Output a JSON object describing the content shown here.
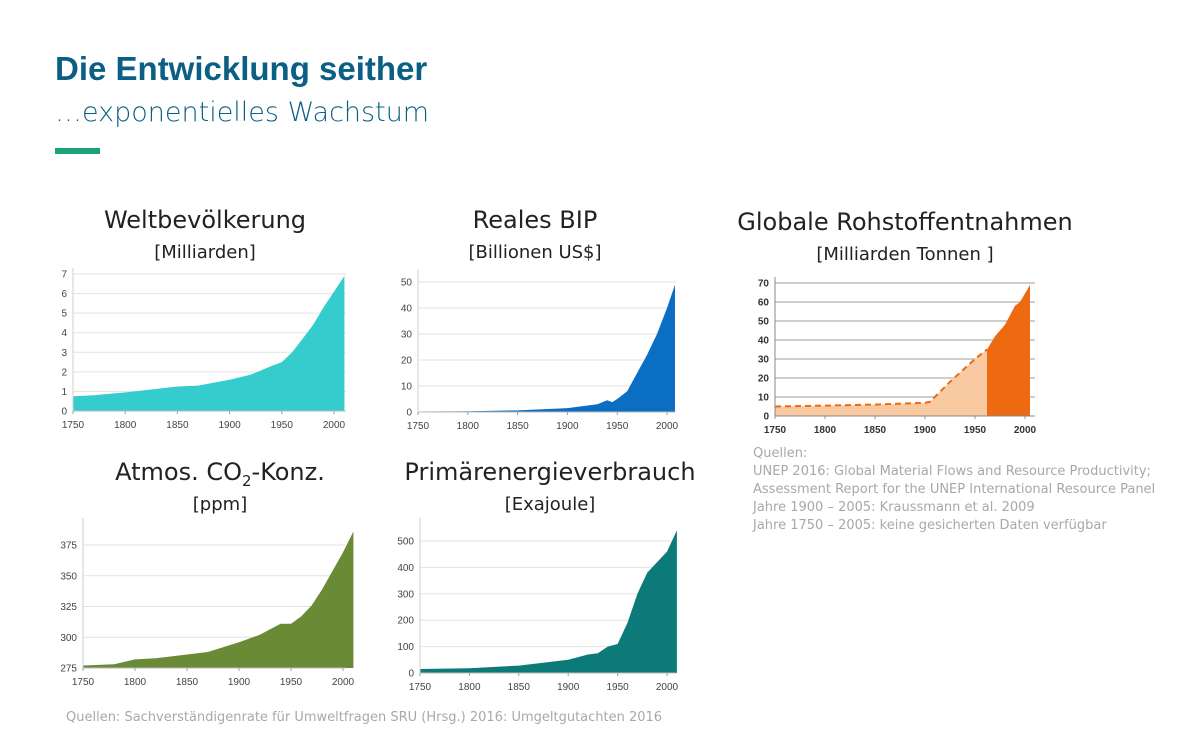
{
  "header": {
    "title": "Die Entwicklung seither",
    "subtitle": "…exponentielles Wachstum"
  },
  "colors": {
    "title": "#0b5f84",
    "accent": "#1aa37a"
  },
  "chart_data": [
    {
      "id": "population",
      "type": "area",
      "title": "Weltbevölkerung",
      "unit": "[Milliarden]",
      "color": "#34cccc",
      "xlim": [
        1750,
        2010
      ],
      "ylim": [
        0,
        7
      ],
      "yticks": [
        0,
        1,
        2,
        3,
        4,
        5,
        6,
        7
      ],
      "xticks": [
        1750,
        1800,
        1850,
        1900,
        1950,
        2000
      ],
      "x": [
        1750,
        1770,
        1800,
        1850,
        1870,
        1900,
        1920,
        1940,
        1950,
        1960,
        1970,
        1980,
        1990,
        2000,
        2010
      ],
      "y": [
        0.75,
        0.8,
        0.95,
        1.25,
        1.3,
        1.6,
        1.85,
        2.3,
        2.5,
        3.0,
        3.7,
        4.4,
        5.3,
        6.1,
        6.9
      ]
    },
    {
      "id": "gdp",
      "type": "area",
      "title": "Reales BIP",
      "unit": "[Billionen US$]",
      "color": "#0a6fc2",
      "xlim": [
        1750,
        2010
      ],
      "ylim": [
        0,
        50
      ],
      "yticks": [
        0,
        10,
        20,
        30,
        40,
        50
      ],
      "xticks": [
        1750,
        1800,
        1850,
        1900,
        1950,
        2000
      ],
      "x": [
        1750,
        1800,
        1850,
        1900,
        1930,
        1940,
        1945,
        1950,
        1960,
        1970,
        1980,
        1990,
        2000,
        2008
      ],
      "y": [
        0.2,
        0.3,
        0.6,
        1.5,
        3,
        4.5,
        3.8,
        5,
        8,
        15,
        22,
        30,
        40,
        49
      ]
    },
    {
      "id": "resources",
      "type": "area",
      "title": "Globale Rohstoffentnahmen",
      "unit": "[Milliarden Tonnen ]",
      "color": "#ee6a10",
      "color_estimate": "#f9c9a2",
      "xlim": [
        1750,
        2008
      ],
      "ylim": [
        0,
        70
      ],
      "yticks": [
        0,
        10,
        20,
        30,
        40,
        50,
        60,
        70
      ],
      "xticks": [
        1750,
        1800,
        1850,
        1900,
        1950,
        2000
      ],
      "estimate_x": [
        1750,
        1800,
        1850,
        1900,
        1905,
        1925,
        1950,
        1962
      ],
      "estimate_y": [
        5,
        5.5,
        6,
        7,
        7.5,
        18,
        30,
        35
      ],
      "x": [
        1962,
        1970,
        1980,
        1990,
        1995,
        2005
      ],
      "y": [
        35,
        42,
        48,
        58,
        60,
        69
      ]
    },
    {
      "id": "co2",
      "type": "area",
      "title": "Atmos. CO",
      "title_sub": "2",
      "title_end": "-Konz.",
      "unit": "[ppm]",
      "color": "#6a8a35",
      "xlim": [
        1750,
        2010
      ],
      "ylim": [
        275,
        385
      ],
      "yticks": [
        275,
        300,
        325,
        350,
        375
      ],
      "xticks": [
        1750,
        1800,
        1850,
        1900,
        1950,
        2000
      ],
      "x": [
        1750,
        1780,
        1800,
        1820,
        1850,
        1870,
        1900,
        1920,
        1940,
        1950,
        1960,
        1970,
        1980,
        1990,
        2000,
        2010
      ],
      "y": [
        277,
        278,
        282,
        283,
        286,
        288,
        296,
        302,
        311,
        311,
        317,
        326,
        339,
        354,
        369,
        386
      ]
    },
    {
      "id": "energy",
      "type": "area",
      "title": "Primärenergieverbrauch",
      "unit": "[Exajoule]",
      "color": "#0c7a78",
      "xlim": [
        1750,
        2010
      ],
      "ylim": [
        0,
        550
      ],
      "yticks": [
        0,
        100,
        200,
        300,
        400,
        500
      ],
      "xticks": [
        1750,
        1800,
        1850,
        1900,
        1950,
        2000
      ],
      "x": [
        1750,
        1800,
        1850,
        1900,
        1920,
        1930,
        1940,
        1950,
        1960,
        1970,
        1980,
        1990,
        2000,
        2010
      ],
      "y": [
        15,
        18,
        28,
        50,
        70,
        75,
        100,
        110,
        190,
        300,
        380,
        420,
        460,
        540
      ]
    }
  ],
  "sources": {
    "resources": [
      "Quellen:",
      "UNEP 2016: Global Material Flows and Resource Productivity;",
      "Assessment Report for the UNEP International Resource Panel",
      "Jahre 1900 – 2005: Kraussmann et al. 2009",
      "Jahre 1750 – 2005: keine gesicherten Daten verfügbar"
    ],
    "main": "Quellen: Sachverständigenrate für Umweltfragen SRU (Hrsg.) 2016: Umgeltgutachten 2016"
  }
}
